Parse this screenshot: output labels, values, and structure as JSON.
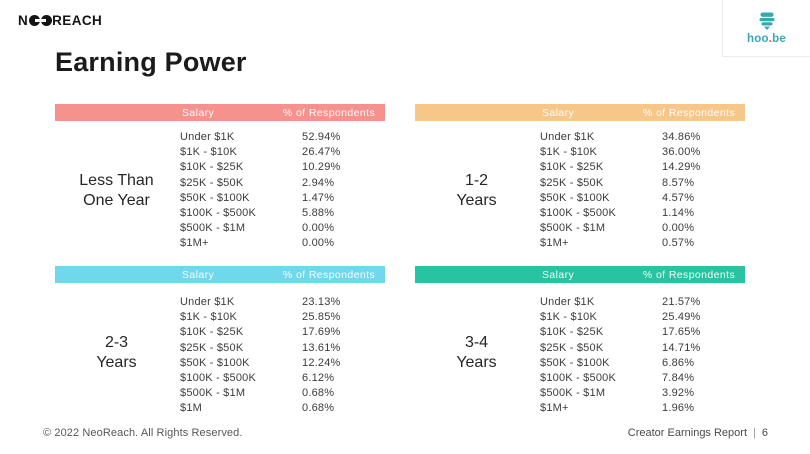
{
  "branding": {
    "neoreach_pre": "N",
    "neoreach_post": "REACH",
    "hoobe_pre": "hoo",
    "hoobe_dot": ".",
    "hoobe_post": "be",
    "hoobe_color": "#3AA7B3",
    "hoobe_dot_color": "#E0564A"
  },
  "title": "Earning Power",
  "columns": {
    "salary": "Salary",
    "pct": "% of Respondents"
  },
  "tables": [
    {
      "label_line1": "Less Than",
      "label_line2": "One Year",
      "color": "#F5928D",
      "rows": [
        {
          "salary": "Under $1K",
          "pct": "52.94%"
        },
        {
          "salary": "$1K - $10K",
          "pct": "26.47%"
        },
        {
          "salary": "$10K - $25K",
          "pct": "10.29%"
        },
        {
          "salary": "$25K - $50K",
          "pct": "2.94%"
        },
        {
          "salary": "$50K - $100K",
          "pct": "1.47%"
        },
        {
          "salary": "$100K - $500K",
          "pct": "5.88%"
        },
        {
          "salary": "$500K - $1M",
          "pct": "0.00%"
        },
        {
          "salary": "$1M+",
          "pct": "0.00%"
        }
      ]
    },
    {
      "label_line1": "1-2",
      "label_line2": "Years",
      "color": "#F7C78A",
      "rows": [
        {
          "salary": "Under $1K",
          "pct": "34.86%"
        },
        {
          "salary": "$1K - $10K",
          "pct": "36.00%"
        },
        {
          "salary": "$10K - $25K",
          "pct": "14.29%"
        },
        {
          "salary": "$25K - $50K",
          "pct": "8.57%"
        },
        {
          "salary": "$50K - $100K",
          "pct": "4.57%"
        },
        {
          "salary": "$100K - $500K",
          "pct": "1.14%"
        },
        {
          "salary": "$500K - $1M",
          "pct": "0.00%"
        },
        {
          "salary": "$1M+",
          "pct": "0.57%"
        }
      ]
    },
    {
      "label_line1": "2-3",
      "label_line2": "Years",
      "color": "#71D7EC",
      "rows": [
        {
          "salary": "Under $1K",
          "pct": "23.13%"
        },
        {
          "salary": "$1K - $10K",
          "pct": "25.85%"
        },
        {
          "salary": "$10K - $25K",
          "pct": "17.69%"
        },
        {
          "salary": "$25K - $50K",
          "pct": "13.61%"
        },
        {
          "salary": "$50K - $100K",
          "pct": "12.24%"
        },
        {
          "salary": "$100K - $500K",
          "pct": "6.12%"
        },
        {
          "salary": "$500K - $1M",
          "pct": "0.68%"
        },
        {
          "salary": "$1M",
          "pct": "0.68%"
        }
      ]
    },
    {
      "label_line1": "3-4",
      "label_line2": "Years",
      "color": "#28C4A2",
      "rows": [
        {
          "salary": "Under $1K",
          "pct": "21.57%"
        },
        {
          "salary": "$1K - $10K",
          "pct": "25.49%"
        },
        {
          "salary": "$10K - $25K",
          "pct": "17.65%"
        },
        {
          "salary": "$25K - $50K",
          "pct": "14.71%"
        },
        {
          "salary": "$50K - $100K",
          "pct": "6.86%"
        },
        {
          "salary": "$100K - $500K",
          "pct": "7.84%"
        },
        {
          "salary": "$500K - $1M",
          "pct": "3.92%"
        },
        {
          "salary": "$1M+",
          "pct": "1.96%"
        }
      ]
    }
  ],
  "footer": {
    "left": "© 2022 NeoReach. All Rights Reserved.",
    "report_title": "Creator Earnings Report",
    "separator": "|",
    "page_number": "6"
  }
}
